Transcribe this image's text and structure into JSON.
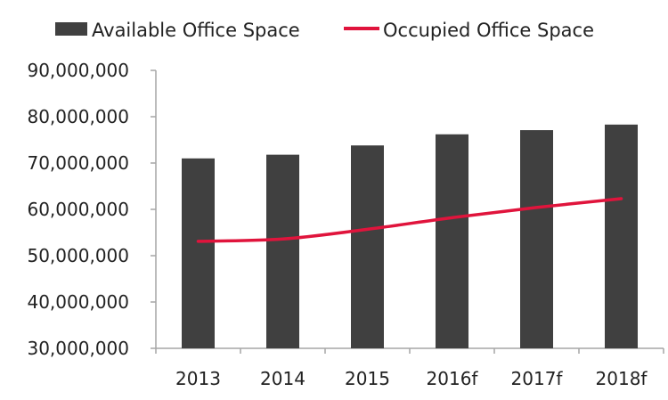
{
  "chart_data": {
    "type": "bar",
    "categories": [
      "2013",
      "2014",
      "2015",
      "2016f",
      "2017f",
      "2018f"
    ],
    "series": [
      {
        "name": "Available Office Space",
        "type": "bar",
        "color": "#404040",
        "values": [
          71000000,
          71800000,
          73800000,
          76200000,
          77100000,
          78300000
        ]
      },
      {
        "name": "Occupied Office Space",
        "type": "line",
        "color": "#e0143c",
        "values": [
          53100000,
          53600000,
          55700000,
          58200000,
          60400000,
          62300000
        ]
      }
    ],
    "y_ticks": [
      "90,000,000",
      "80,000,000",
      "70,000,000",
      "60,000,000",
      "50,000,000",
      "40,000,000",
      "30,000,000"
    ],
    "ylim": [
      30000000,
      90000000
    ],
    "title": "",
    "xlabel": "",
    "ylabel": "",
    "legend_position": "top",
    "grid": false
  }
}
